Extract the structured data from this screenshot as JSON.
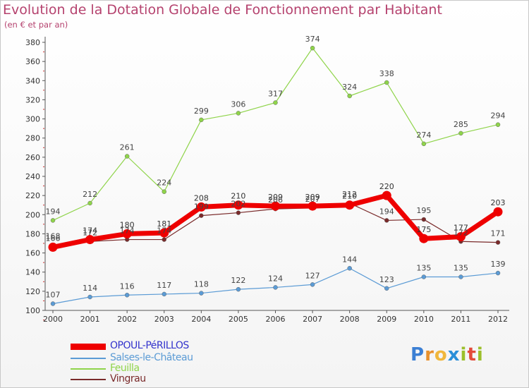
{
  "header": {
    "title": "Evolution de la Dotation Globale de Fonctionnement par Habitant",
    "subtitle": "(en € et par an)"
  },
  "logo": {
    "text": "Proxiti"
  },
  "chart_data": {
    "type": "line",
    "title": "Evolution de la Dotation Globale de Fonctionnement par Habitant",
    "subtitle": "(en € et par an)",
    "xlabel": "",
    "ylabel": "",
    "ylim": [
      100,
      380
    ],
    "y_ticks": [
      100,
      120,
      140,
      160,
      180,
      200,
      220,
      240,
      260,
      280,
      300,
      320,
      340,
      360,
      380
    ],
    "categories": [
      "2000",
      "2001",
      "2002",
      "2003",
      "2004",
      "2005",
      "2006",
      "2007",
      "2008",
      "2009",
      "2010",
      "2011",
      "2012"
    ],
    "grid": false,
    "legend_position": "bottom-left",
    "series": [
      {
        "name": "OPOUL-PéRILLOS",
        "color": "#ee0000",
        "label_color": "#3333cc",
        "bold": true,
        "values": [
          166,
          174,
          180,
          181,
          208,
          210,
          209,
          209,
          210,
          220,
          175,
          177,
          203
        ]
      },
      {
        "name": "Salses-le-Château",
        "color": "#5b9bd5",
        "label_color": "#5b9bd5",
        "bold": false,
        "values": [
          107,
          114,
          116,
          117,
          118,
          122,
          124,
          127,
          144,
          123,
          135,
          135,
          139
        ]
      },
      {
        "name": "Feuilla",
        "color": "#8fd44a",
        "label_color": "#8fd44a",
        "bold": false,
        "values": [
          194,
          212,
          261,
          224,
          299,
          306,
          317,
          374,
          324,
          338,
          274,
          285,
          294
        ]
      },
      {
        "name": "Vingrau",
        "color": "#7a2a2a",
        "label_color": "#7a2a2a",
        "bold": false,
        "values": [
          168,
          172,
          174,
          174,
          199,
          202,
          206,
          207,
          212,
          194,
          195,
          172,
          171
        ]
      }
    ]
  }
}
